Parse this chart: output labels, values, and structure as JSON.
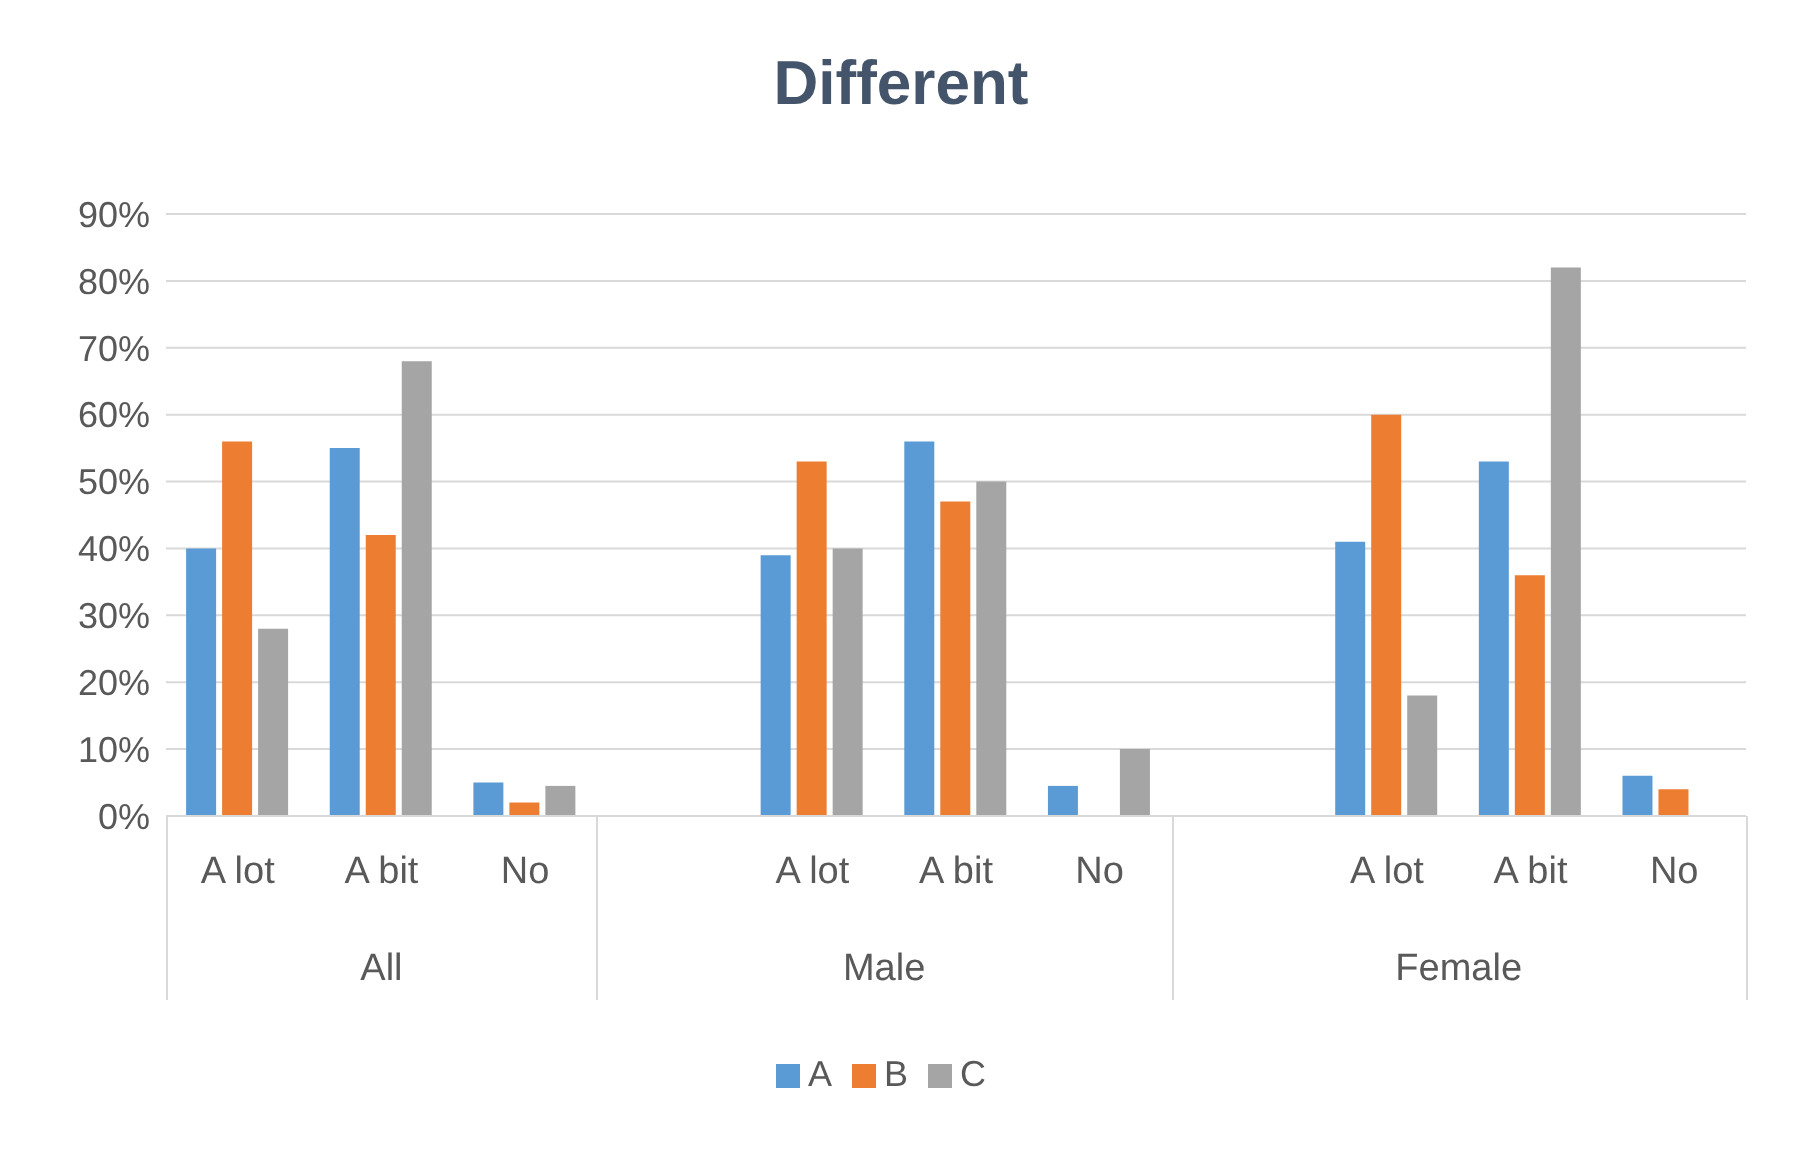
{
  "chart_data": {
    "type": "bar",
    "title": "Different",
    "categories": [
      "A lot",
      "A bit",
      "No",
      null,
      "A lot",
      "A bit",
      "No",
      null,
      "A lot",
      "A bit",
      "No"
    ],
    "series": [
      {
        "name": "A",
        "color": "#5b9bd5",
        "values": [
          40,
          55,
          5,
          null,
          39,
          56,
          4.5,
          null,
          41,
          53,
          6
        ]
      },
      {
        "name": "B",
        "color": "#ed7d31",
        "values": [
          56,
          42,
          2,
          null,
          53,
          47,
          null,
          null,
          60,
          36,
          4
        ]
      },
      {
        "name": "C",
        "color": "#a5a5a5",
        "values": [
          28,
          68,
          4.5,
          null,
          40,
          50,
          10,
          null,
          18,
          82,
          null
        ]
      }
    ],
    "annotations": [
      "All",
      "Male",
      "Female"
    ],
    "ylim": [
      0,
      90
    ],
    "yticks": [
      {
        "value": 0,
        "label": "0%"
      },
      {
        "value": 10,
        "label": "10%"
      },
      {
        "value": 20,
        "label": "20%"
      },
      {
        "value": 30,
        "label": "30%"
      },
      {
        "value": 40,
        "label": "40%"
      },
      {
        "value": 50,
        "label": "50%"
      },
      {
        "value": 60,
        "label": "60%"
      },
      {
        "value": 70,
        "label": "70%"
      },
      {
        "value": 80,
        "label": "80%"
      },
      {
        "value": 90,
        "label": "90%"
      }
    ],
    "grid": "y",
    "legend": "bottom"
  }
}
